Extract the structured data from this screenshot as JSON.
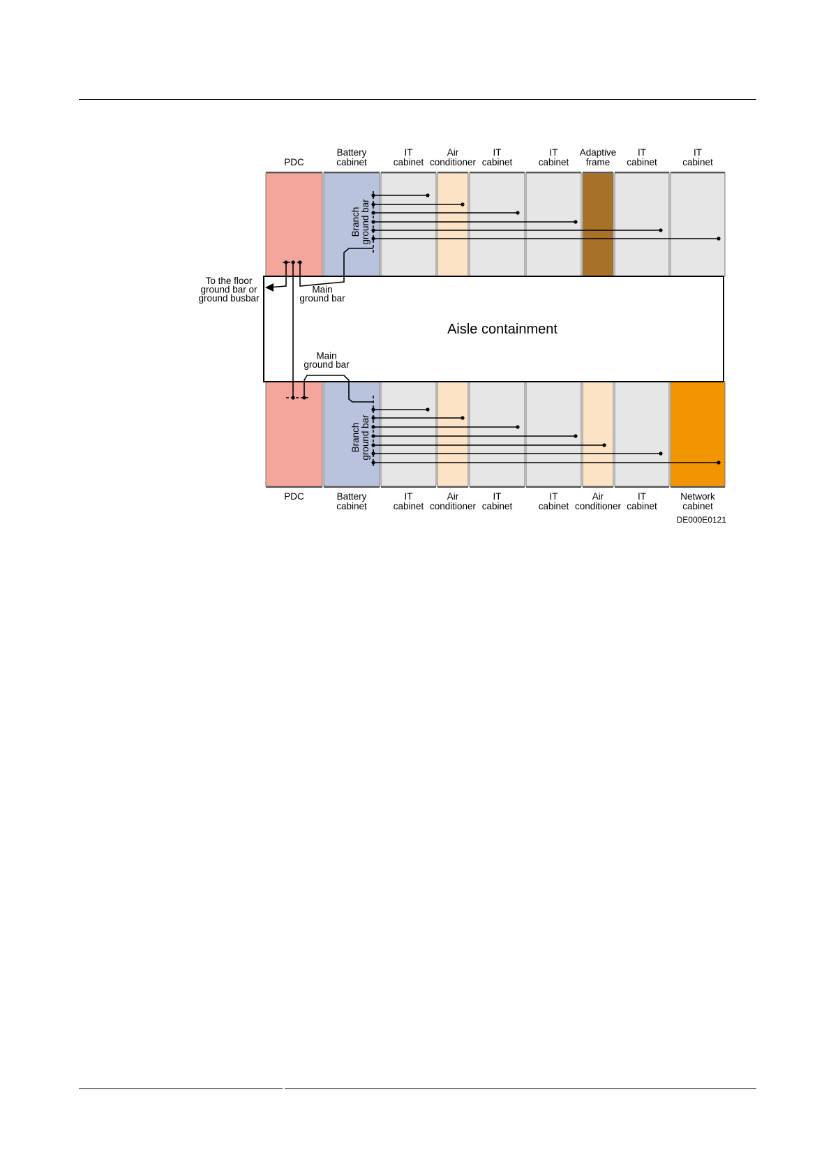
{
  "colors": {
    "pdc": "#f4a59c",
    "battery": "#b9c3dd",
    "it": "#e6e6e6",
    "air": "#fce3c6",
    "adaptive": "#a87128",
    "network": "#f39500"
  },
  "top_row": [
    {
      "type": "pdc",
      "label": "PDC"
    },
    {
      "type": "battery",
      "label": "Battery\ncabinet"
    },
    {
      "type": "it",
      "label": "IT\ncabinet"
    },
    {
      "type": "air",
      "label": "Air\nconditioner"
    },
    {
      "type": "it",
      "label": "IT\ncabinet"
    },
    {
      "type": "it",
      "label": "IT\ncabinet"
    },
    {
      "type": "adaptive",
      "label": "Adaptive\nframe"
    },
    {
      "type": "it",
      "label": "IT\ncabinet"
    },
    {
      "type": "it",
      "label": "IT\ncabinet"
    }
  ],
  "bottom_row": [
    {
      "type": "pdc",
      "label": "PDC"
    },
    {
      "type": "battery",
      "label": "Battery\ncabinet"
    },
    {
      "type": "it",
      "label": "IT\ncabinet"
    },
    {
      "type": "air",
      "label": "Air\nconditioner"
    },
    {
      "type": "it",
      "label": "IT\ncabinet"
    },
    {
      "type": "it",
      "label": "IT\ncabinet"
    },
    {
      "type": "air",
      "label": "Air\nconditioner"
    },
    {
      "type": "it",
      "label": "IT\ncabinet"
    },
    {
      "type": "network",
      "label": "Network\ncabinet"
    }
  ],
  "aisle_label": "Aisle containment",
  "branch_label": "Branch\nground bar",
  "main_label": "Main\nground bar",
  "floor_label": "To the floor\nground bar or\nground busbar",
  "figure_id": "DE000E0121"
}
